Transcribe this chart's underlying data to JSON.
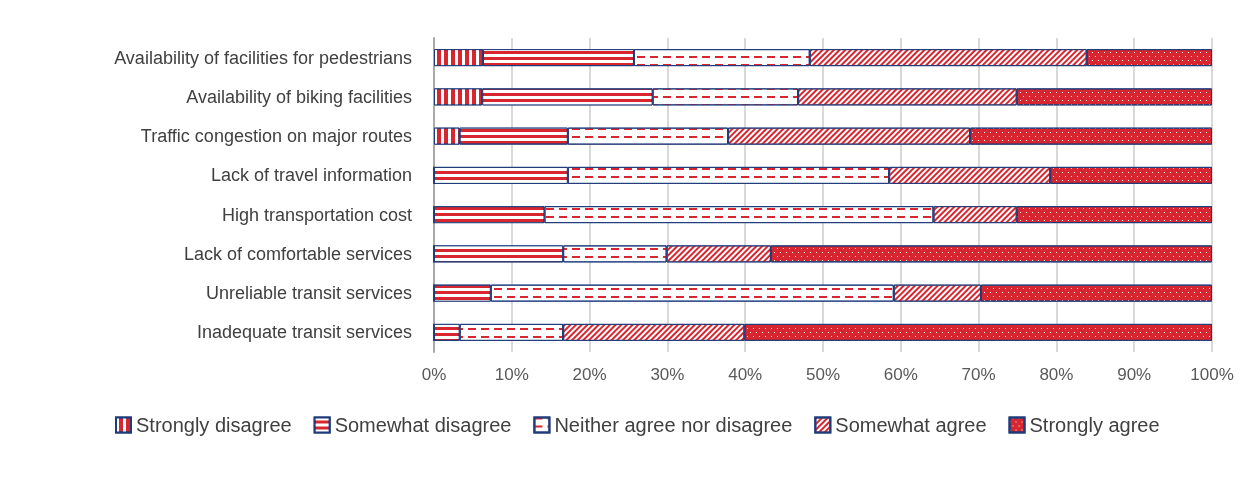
{
  "chart_data": {
    "type": "bar",
    "orientation": "horizontal",
    "stacked": true,
    "categories": [
      "Availability of facilities for pedestrians",
      "Availability of biking facilities",
      "Traffic congestion on major routes",
      "Lack of travel information",
      "High transportation cost",
      "Lack of comfortable services",
      "Unreliable transit services",
      "Inadequate transit services"
    ],
    "series": [
      {
        "name": "Strongly disagree",
        "color": "#d7262f",
        "values": [
          6.3,
          6.2,
          3.3,
          0,
          0,
          0,
          0,
          0
        ]
      },
      {
        "name": "Somewhat disagree",
        "color": "#d7262f",
        "values": [
          19.4,
          21.9,
          13.9,
          17.2,
          14.2,
          16.6,
          7.3,
          3.3
        ]
      },
      {
        "name": "Neither agree nor disagree",
        "color": "#ffffff",
        "values": [
          22.6,
          18.7,
          20.6,
          41.3,
          50.0,
          13.3,
          51.8,
          13.3
        ]
      },
      {
        "name": "Somewhat agree",
        "color": "#ffffff",
        "values": [
          35.6,
          28.1,
          31.1,
          20.7,
          10.7,
          13.4,
          11.2,
          23.3
        ]
      },
      {
        "name": "Strongly agree",
        "color": "#d7262f",
        "values": [
          16.1,
          25.1,
          31.1,
          20.8,
          25.1,
          56.7,
          29.7,
          60.1
        ]
      }
    ],
    "xlim": [
      0,
      100
    ],
    "xticks": [
      {
        "value": 0,
        "label": "0%"
      },
      {
        "value": 10,
        "label": "10%"
      },
      {
        "value": 20,
        "label": "20%"
      },
      {
        "value": 30,
        "label": "30%"
      },
      {
        "value": 40,
        "label": "40%"
      },
      {
        "value": 50,
        "label": "50%"
      },
      {
        "value": 60,
        "label": "60%"
      },
      {
        "value": 70,
        "label": "70%"
      },
      {
        "value": 80,
        "label": "80%"
      },
      {
        "value": 90,
        "label": "90%"
      },
      {
        "value": 100,
        "label": "100%"
      }
    ],
    "grid": "x",
    "legend": "bottom"
  }
}
